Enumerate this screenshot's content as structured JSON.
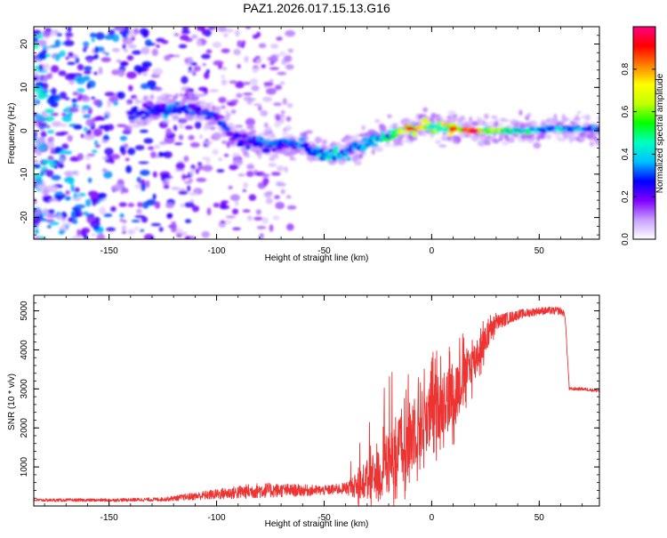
{
  "title": "PAZ1.2026.017.15.13.G16",
  "chart_data": [
    {
      "type": "heatmap",
      "xlabel": "Height of straight line (km)",
      "ylabel": "Frequency (Hz)",
      "xlim": [
        -185,
        78
      ],
      "ylim": [
        -25,
        24
      ],
      "x_ticks": [
        -150,
        -100,
        -50,
        0,
        50
      ],
      "x_tick_labels": [
        "-150",
        "-100",
        "-50",
        "0",
        "50"
      ],
      "y_ticks": [
        -20,
        -10,
        0,
        10,
        20
      ],
      "y_tick_labels": [
        "-20",
        "-10",
        "0",
        "10",
        "20"
      ],
      "colorbar": {
        "label": "Normalized spectral amplitude",
        "range": [
          0,
          1
        ],
        "ticks": [
          0.0,
          0.2,
          0.4,
          0.6,
          0.8
        ],
        "tick_labels": [
          "0.0",
          "0.2",
          "0.4",
          "0.6",
          "0.8"
        ],
        "colors": [
          "#ffffff",
          "#c8a0ff",
          "#8000ff",
          "#0000ff",
          "#00c0ff",
          "#00ffc0",
          "#00ff00",
          "#c0ff00",
          "#ffff00",
          "#ff8000",
          "#ff0000",
          "#ff0080"
        ]
      },
      "ridge_profile": {
        "description": "dominant frequency ridge",
        "x": [
          -140,
          -130,
          -120,
          -110,
          -100,
          -90,
          -80,
          -70,
          -60,
          -50,
          -40,
          -30,
          -20,
          -10,
          0,
          10,
          20,
          40,
          60,
          78
        ],
        "frequency": [
          4,
          4.5,
          5,
          5,
          3,
          -2,
          -3,
          -3,
          -3,
          -6,
          -5,
          -3,
          -1,
          0.5,
          1,
          0.5,
          0,
          0,
          0.5,
          0.5
        ],
        "amplitude": [
          0.35,
          0.3,
          0.35,
          0.3,
          0.3,
          0.3,
          0.35,
          0.3,
          0.35,
          0.45,
          0.4,
          0.4,
          0.5,
          0.85,
          0.6,
          0.8,
          0.9,
          0.5,
          0.45,
          0.4
        ]
      }
    },
    {
      "type": "line",
      "xlabel": "Height of straight line (km)",
      "ylabel": "SNR (10 * v/v)",
      "xlim": [
        -185,
        78
      ],
      "ylim": [
        0,
        5400
      ],
      "x_ticks": [
        -150,
        -100,
        -50,
        0,
        50
      ],
      "x_tick_labels": [
        "-150",
        "-100",
        "-50",
        "0",
        "50"
      ],
      "y_ticks": [
        1000,
        2000,
        3000,
        4000,
        5000
      ],
      "y_tick_labels": [
        "1000",
        "2000",
        "3000",
        "4000",
        "5000"
      ],
      "color": "#ee3333",
      "series": [
        {
          "name": "SNR envelope",
          "x": [
            -185,
            -150,
            -125,
            -110,
            -90,
            -80,
            -60,
            -50,
            -40,
            -30,
            -20,
            -10,
            0,
            10,
            20,
            30,
            40,
            50,
            60,
            62,
            64,
            70,
            78
          ],
          "baseline": [
            150,
            150,
            170,
            250,
            350,
            400,
            400,
            400,
            450,
            600,
            900,
            1700,
            2300,
            2800,
            3700,
            4700,
            4900,
            5000,
            5000,
            4900,
            3000,
            3000,
            2950
          ],
          "amplitude": [
            80,
            80,
            100,
            200,
            350,
            400,
            300,
            250,
            300,
            1000,
            1700,
            1800,
            1700,
            1600,
            1000,
            400,
            250,
            200,
            200,
            150,
            80,
            80,
            80
          ]
        }
      ]
    }
  ]
}
